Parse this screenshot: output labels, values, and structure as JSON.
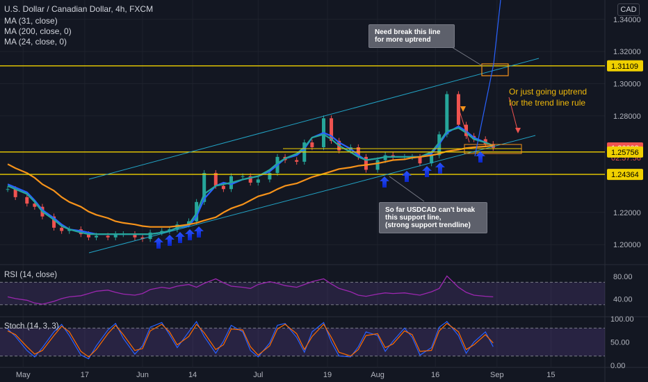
{
  "header": {
    "symbol_title": "U.S. Dollar / Canadian Dollar, 4h, FXCM",
    "indicators": [
      "MA (31, close)",
      "MA (200, close, 0)",
      "MA (24, close, 0)"
    ],
    "currency": "CAD"
  },
  "price_labels": {
    "current_price": "1.26008",
    "countdown": "02:57:56",
    "resistance": "1.31109",
    "support_1": "1.25756",
    "support_2": "1.24364"
  },
  "annotations": {
    "break_note_1": "Need break this line",
    "break_note_2": "for more uptrend",
    "uptrend_note_1": "Or just going uptrend",
    "uptrend_note_2": "for the trend line rule",
    "support_note_1": "So far USDCAD can't break",
    "support_note_2": "this support line,",
    "support_note_3": "(strong support trendline)"
  },
  "rsi_pane": {
    "label": "RSI (14, close)",
    "ticks": [
      "80.00",
      "40.00"
    ]
  },
  "stoch_pane": {
    "label": "Stoch (14, 3, 3)",
    "ticks": [
      "100.00",
      "50.00",
      "0.00"
    ]
  },
  "chart_data": {
    "type": "line",
    "title": "U.S. Dollar / Canadian Dollar, 4h, FXCM",
    "x_ticks": [
      "May",
      "17",
      "Jun",
      "14",
      "Jul",
      "19",
      "Aug",
      "16",
      "Sep",
      "15"
    ],
    "y_ticks": [
      "1.34000",
      "1.32000",
      "1.30000",
      "1.28000",
      "1.22000",
      "1.20000"
    ],
    "ylim": [
      1.188,
      1.352
    ],
    "price_series": {
      "name": "USDCAD",
      "dates": [
        "2021-04-27",
        "2021-04-29",
        "2021-05-02",
        "2021-05-04",
        "2021-05-06",
        "2021-05-09",
        "2021-05-11",
        "2021-05-13",
        "2021-05-16",
        "2021-05-18",
        "2021-05-20",
        "2021-05-23",
        "2021-05-25",
        "2021-05-27",
        "2021-05-30",
        "2021-06-01",
        "2021-06-03",
        "2021-06-06",
        "2021-06-08",
        "2021-06-10",
        "2021-06-13",
        "2021-06-15",
        "2021-06-17",
        "2021-06-20",
        "2021-06-22",
        "2021-06-24",
        "2021-06-27",
        "2021-06-29",
        "2021-07-01",
        "2021-07-04",
        "2021-07-06",
        "2021-07-08",
        "2021-07-11",
        "2021-07-13",
        "2021-07-15",
        "2021-07-18",
        "2021-07-20",
        "2021-07-22",
        "2021-07-25",
        "2021-07-27",
        "2021-07-29",
        "2021-08-01",
        "2021-08-03",
        "2021-08-05",
        "2021-08-08",
        "2021-08-10",
        "2021-08-12",
        "2021-08-15",
        "2021-08-17",
        "2021-08-19",
        "2021-08-22",
        "2021-08-24",
        "2021-08-26",
        "2021-08-29",
        "2021-08-31"
      ],
      "values": [
        1.2345,
        1.2295,
        1.2255,
        1.2235,
        1.2175,
        1.2105,
        1.2085,
        1.2095,
        1.2065,
        1.2045,
        1.2055,
        1.2045,
        1.2065,
        1.2065,
        1.2045,
        1.2035,
        1.2075,
        1.2085,
        1.2095,
        1.2125,
        1.2145,
        1.2265,
        1.2445,
        1.2365,
        1.2345,
        1.2425,
        1.2425,
        1.2385,
        1.2405,
        1.2445,
        1.2545,
        1.2525,
        1.2515,
        1.2635,
        1.2605,
        1.2785,
        1.2645,
        1.2585,
        1.2605,
        1.2545,
        1.2465,
        1.2525,
        1.2555,
        1.2545,
        1.2545,
        1.2545,
        1.2505,
        1.2555,
        1.2685,
        1.2935,
        1.2745,
        1.2675,
        1.2655,
        1.2625,
        1.2601
      ]
    },
    "moving_averages": [
      {
        "name": "MA (31, close)",
        "color": "#2962ff",
        "values": [
          1.2375,
          1.2355,
          1.2325,
          1.2275,
          1.2215,
          1.2165,
          1.2125,
          1.2095,
          1.2085,
          1.2075,
          1.2065,
          1.2065,
          1.2065,
          1.2065,
          1.2065,
          1.2065,
          1.2065,
          1.2075,
          1.2085,
          1.2105,
          1.2115,
          1.2175,
          1.2285,
          1.2365,
          1.2385,
          1.2375,
          1.2405,
          1.2415,
          1.2425,
          1.2455,
          1.2495,
          1.2535,
          1.2555,
          1.2595,
          1.2665,
          1.2695,
          1.2675,
          1.2635,
          1.2595,
          1.2555,
          1.2525,
          1.2535,
          1.2545,
          1.2545,
          1.2545,
          1.2545,
          1.2545,
          1.2565,
          1.2625,
          1.2695,
          1.2735,
          1.2705,
          1.2665,
          1.2635,
          1.2615
        ]
      },
      {
        "name": "MA (24, close, 0)",
        "color": "#26a69a",
        "values": [
          1.2365,
          1.2345,
          1.2315,
          1.2265,
          1.2205,
          1.2155,
          1.2115,
          1.2095,
          1.2075,
          1.2065,
          1.2065,
          1.2065,
          1.2065,
          1.2065,
          1.2065,
          1.2065,
          1.2065,
          1.2075,
          1.2085,
          1.2105,
          1.2125,
          1.2195,
          1.2315,
          1.2365,
          1.2375,
          1.2385,
          1.2405,
          1.2415,
          1.2425,
          1.2465,
          1.2505,
          1.2535,
          1.2565,
          1.2605,
          1.2665,
          1.2685,
          1.2655,
          1.2615,
          1.2575,
          1.2545,
          1.2525,
          1.2535,
          1.2545,
          1.2545,
          1.2545,
          1.2545,
          1.2545,
          1.2575,
          1.2635,
          1.2705,
          1.2725,
          1.2695,
          1.2655,
          1.2635,
          1.2615
        ]
      },
      {
        "name": "MA (200, close, 0)",
        "color": "#f7931a",
        "values": [
          1.25,
          1.2475,
          1.2445,
          1.2415,
          1.2375,
          1.2335,
          1.2295,
          1.2265,
          1.2235,
          1.2205,
          1.2185,
          1.2165,
          1.2145,
          1.2135,
          1.2125,
          1.2115,
          1.211,
          1.211,
          1.211,
          1.2115,
          1.2125,
          1.2135,
          1.215,
          1.217,
          1.22,
          1.2225,
          1.225,
          1.2275,
          1.23,
          1.232,
          1.2345,
          1.2365,
          1.238,
          1.24,
          1.242,
          1.244,
          1.2455,
          1.247,
          1.248,
          1.249,
          1.2495,
          1.2505,
          1.2515,
          1.2525,
          1.253,
          1.254,
          1.2545,
          1.2555,
          1.2565,
          1.258,
          1.259,
          1.26,
          1.2605,
          1.261,
          1.2615
        ]
      }
    ],
    "horizontal_levels": [
      1.31109,
      1.25756,
      1.24364
    ],
    "rsi_values": [
      44,
      41,
      38,
      33,
      31,
      36,
      41,
      44,
      46,
      50,
      54,
      56,
      52,
      49,
      47,
      50,
      57,
      61,
      59,
      63,
      66,
      61,
      68,
      76,
      69,
      63,
      61,
      59,
      66,
      71,
      68,
      64,
      61,
      66,
      71,
      76,
      67,
      59,
      53,
      47,
      45,
      49,
      51,
      50,
      51,
      49,
      47,
      53,
      59,
      81,
      61,
      52,
      47,
      45,
      44
    ],
    "rsi_bands": [
      70,
      30
    ],
    "stoch_k": [
      78,
      62,
      32,
      18,
      38,
      72,
      88,
      64,
      22,
      14,
      42,
      76,
      90,
      58,
      24,
      42,
      82,
      92,
      66,
      38,
      72,
      94,
      62,
      26,
      52,
      86,
      72,
      32,
      18,
      48,
      86,
      90,
      60,
      28,
      72,
      92,
      50,
      20,
      18,
      40,
      72,
      64,
      30,
      52,
      80,
      60,
      22,
      38,
      82,
      94,
      64,
      26,
      50,
      72,
      40
    ],
    "stoch_d": [
      74,
      66,
      40,
      24,
      32,
      64,
      84,
      72,
      30,
      18,
      34,
      68,
      86,
      66,
      32,
      36,
      74,
      88,
      72,
      44,
      62,
      88,
      70,
      34,
      44,
      78,
      76,
      40,
      22,
      42,
      78,
      88,
      68,
      34,
      62,
      88,
      60,
      28,
      20,
      34,
      64,
      68,
      38,
      46,
      74,
      66,
      30,
      32,
      74,
      90,
      72,
      34,
      44,
      66,
      48
    ],
    "stoch_bands": [
      80,
      20
    ]
  }
}
